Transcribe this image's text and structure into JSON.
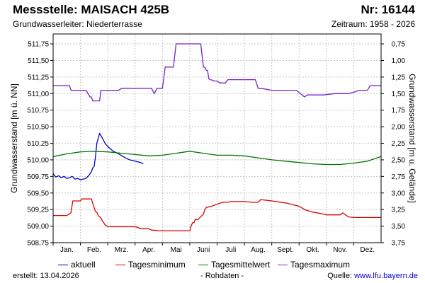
{
  "header": {
    "title": "Messstelle: MAISACH 425B",
    "nr": "Nr: 16144",
    "aquifer": "Grundwasserleiter:   Niederterrasse",
    "period": "Zeitraum: 1958 - 2026"
  },
  "footer": {
    "created": "erstellt:  13.04.2026",
    "raw": "- Rohdaten -",
    "source_label": "Quelle: ",
    "source_link": "www.lfu.bayern.de"
  },
  "chart_data": {
    "type": "line",
    "ylabel": "Grundwasserstand [m ü. NN]",
    "y2label": "Grundwasserstand [m u. Gelände]",
    "ylim": [
      508.75,
      511.9
    ],
    "yticks": [
      "508,75",
      "509,00",
      "509,25",
      "509,50",
      "509,75",
      "510,00",
      "510,25",
      "510,50",
      "510,75",
      "511,00",
      "511,25",
      "511,50",
      "511,75"
    ],
    "y2_reference": 512.5,
    "y2ticks": [
      "0,75",
      "1,00",
      "1,25",
      "1,50",
      "1,75",
      "2,00",
      "2,25",
      "2,50",
      "2,75",
      "3,00",
      "3,25",
      "3,50",
      "3,75"
    ],
    "xlim": [
      0,
      12
    ],
    "xticks": [
      "Jan.",
      "Feb.",
      "Mrz.",
      "Apr.",
      "Mai",
      "Juni",
      "Juli",
      "Aug.",
      "Sept.",
      "Okt.",
      "Nov.",
      "Dez."
    ],
    "grid": true,
    "legend_position": "bottom",
    "colors": {
      "aktuell": "#0000cc",
      "min": "#dd0000",
      "mean": "#007700",
      "max": "#7722cc"
    },
    "series": [
      {
        "name": "aktuell",
        "key": "aktuell",
        "x": [
          0.0,
          0.1,
          0.2,
          0.3,
          0.4,
          0.5,
          0.6,
          0.7,
          0.8,
          0.9,
          1.0,
          1.1,
          1.2,
          1.3,
          1.4,
          1.45,
          1.5,
          1.55,
          1.6,
          1.7,
          1.8,
          1.9,
          2.0,
          2.2,
          2.4,
          2.6,
          2.8,
          3.0,
          3.2,
          3.3
        ],
        "y": [
          509.79,
          509.74,
          509.76,
          509.73,
          509.75,
          509.72,
          509.73,
          509.75,
          509.71,
          509.72,
          509.7,
          509.71,
          509.72,
          509.76,
          509.82,
          509.88,
          509.9,
          510.05,
          510.25,
          510.4,
          510.33,
          510.25,
          510.2,
          510.13,
          510.09,
          510.04,
          510.0,
          509.98,
          509.96,
          509.94
        ]
      },
      {
        "name": "Tagesminimum",
        "key": "min",
        "x": [
          0.0,
          0.5,
          0.65,
          0.72,
          1.0,
          1.05,
          1.4,
          1.5,
          1.55,
          1.6,
          1.65,
          1.75,
          1.8,
          1.85,
          1.9,
          2.0,
          2.1,
          2.5,
          3.0,
          3.1,
          3.2,
          3.3,
          3.5,
          3.6,
          3.9,
          4.3,
          4.7,
          5.0,
          5.05,
          5.1,
          5.15,
          5.2,
          5.3,
          5.5,
          5.55,
          5.6,
          5.8,
          6.0,
          6.2,
          6.4,
          6.5,
          6.8,
          7.0,
          7.3,
          7.5,
          7.6,
          8.0,
          8.5,
          9.0,
          9.2,
          9.5,
          9.8,
          10.0,
          10.2,
          10.5,
          10.6,
          10.8,
          11.0,
          11.2,
          11.5,
          12.0
        ],
        "y": [
          509.16,
          509.16,
          509.2,
          509.38,
          509.38,
          509.41,
          509.41,
          509.28,
          509.22,
          509.21,
          509.16,
          509.12,
          509.08,
          509.05,
          509.02,
          508.99,
          508.99,
          508.99,
          508.99,
          508.98,
          508.96,
          508.96,
          508.96,
          508.94,
          508.93,
          508.93,
          508.93,
          508.93,
          509.0,
          509.05,
          509.05,
          509.1,
          509.1,
          509.18,
          509.25,
          509.28,
          509.3,
          509.33,
          509.36,
          509.36,
          509.37,
          509.37,
          509.37,
          509.36,
          509.36,
          509.4,
          509.38,
          509.35,
          509.3,
          509.25,
          509.21,
          509.19,
          509.17,
          509.17,
          509.17,
          509.2,
          509.14,
          509.13,
          509.13,
          509.13,
          509.13
        ]
      },
      {
        "name": "Tagesmittelwert",
        "key": "mean",
        "x": [
          0.0,
          0.5,
          1.0,
          1.5,
          2.0,
          2.5,
          3.0,
          3.5,
          4.0,
          4.5,
          5.0,
          5.5,
          6.0,
          6.5,
          7.0,
          7.5,
          8.0,
          8.5,
          9.0,
          9.5,
          10.0,
          10.5,
          11.0,
          11.5,
          12.0
        ],
        "y": [
          510.05,
          510.09,
          510.12,
          510.13,
          510.12,
          510.1,
          510.08,
          510.06,
          510.07,
          510.1,
          510.13,
          510.1,
          510.07,
          510.07,
          510.06,
          510.03,
          510.0,
          509.98,
          509.96,
          509.94,
          509.93,
          509.93,
          509.95,
          509.98,
          510.05
        ]
      },
      {
        "name": "Tagesmaximum",
        "key": "max",
        "x": [
          0.0,
          0.6,
          0.65,
          1.1,
          1.2,
          1.35,
          1.4,
          1.45,
          1.7,
          1.75,
          1.8,
          2.0,
          2.4,
          2.5,
          2.8,
          3.0,
          3.3,
          3.6,
          3.7,
          3.8,
          4.0,
          4.1,
          4.2,
          4.4,
          4.5,
          4.6,
          5.0,
          5.4,
          5.5,
          5.55,
          5.6,
          5.65,
          5.7,
          5.9,
          6.0,
          6.1,
          6.3,
          6.4,
          7.0,
          7.4,
          7.5,
          7.6,
          8.0,
          8.3,
          8.6,
          8.9,
          9.2,
          9.3,
          9.4,
          9.9,
          10.3,
          10.5,
          10.8,
          11.0,
          11.2,
          11.5,
          11.6,
          12.0
        ],
        "y": [
          511.12,
          511.12,
          511.05,
          511.05,
          511.05,
          510.95,
          510.95,
          510.89,
          510.89,
          511.05,
          511.05,
          511.05,
          511.05,
          511.08,
          511.08,
          511.08,
          511.08,
          511.08,
          511.0,
          511.08,
          511.08,
          511.4,
          511.4,
          511.4,
          511.75,
          511.75,
          511.75,
          511.75,
          511.4,
          511.4,
          511.35,
          511.35,
          511.22,
          511.19,
          511.19,
          511.16,
          511.16,
          511.21,
          511.21,
          511.21,
          511.08,
          511.08,
          511.05,
          511.05,
          511.05,
          511.05,
          510.95,
          510.98,
          510.98,
          510.98,
          511.0,
          511.0,
          511.0,
          511.02,
          511.05,
          511.05,
          511.12,
          511.12
        ]
      }
    ]
  }
}
